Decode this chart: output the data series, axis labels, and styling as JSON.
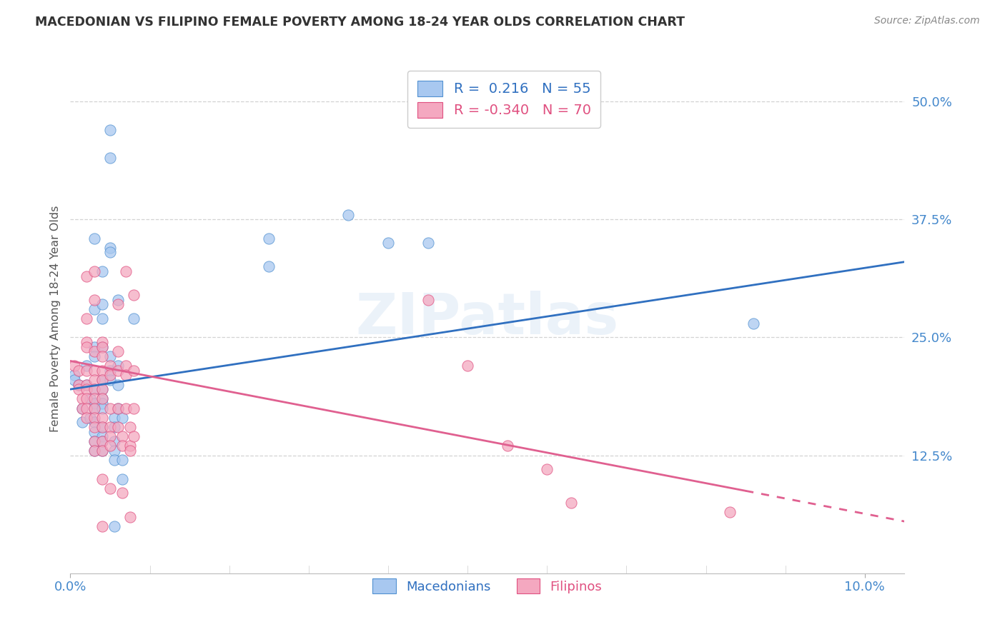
{
  "title": "MACEDONIAN VS FILIPINO FEMALE POVERTY AMONG 18-24 YEAR OLDS CORRELATION CHART",
  "source": "Source: ZipAtlas.com",
  "ylabel": "Female Poverty Among 18-24 Year Olds",
  "yticks_labels": [
    "50.0%",
    "37.5%",
    "25.0%",
    "12.5%"
  ],
  "ytick_vals": [
    50.0,
    37.5,
    25.0,
    12.5
  ],
  "xticks_labels": [
    "0.0%",
    "10.0%"
  ],
  "xtick_vals": [
    0.0,
    10.0
  ],
  "xlim": [
    0.0,
    10.5
  ],
  "ylim": [
    0.0,
    54.0
  ],
  "macedonian_color": "#A8C8F0",
  "filipino_color": "#F4A8C0",
  "macedonian_edge_color": "#5090D0",
  "filipino_edge_color": "#E05080",
  "macedonian_line_color": "#3070C0",
  "filipino_line_color": "#E06090",
  "background_color": "#FFFFFF",
  "grid_color": "#C8C8C8",
  "watermark": "ZIPatlas",
  "legend_mac_R": "0.216",
  "legend_mac_N": "55",
  "legend_fil_R": "-0.340",
  "legend_fil_N": "70",
  "label_mac": "Macedonians",
  "label_fil": "Filipinos",
  "mac_line": {
    "x0": 0.0,
    "y0": 19.5,
    "x1": 10.5,
    "y1": 33.0
  },
  "fil_line": {
    "x0": 0.0,
    "y0": 22.5,
    "x1": 10.5,
    "y1": 5.5
  },
  "macedonian_points": [
    [
      0.05,
      21.0
    ],
    [
      0.05,
      20.5
    ],
    [
      0.1,
      20.0
    ],
    [
      0.15,
      17.5
    ],
    [
      0.15,
      16.0
    ],
    [
      0.2,
      22.0
    ],
    [
      0.2,
      20.0
    ],
    [
      0.25,
      18.5
    ],
    [
      0.25,
      16.5
    ],
    [
      0.3,
      35.5
    ],
    [
      0.3,
      28.0
    ],
    [
      0.3,
      24.0
    ],
    [
      0.3,
      23.0
    ],
    [
      0.3,
      19.5
    ],
    [
      0.3,
      18.0
    ],
    [
      0.3,
      17.5
    ],
    [
      0.3,
      16.0
    ],
    [
      0.3,
      15.0
    ],
    [
      0.3,
      14.0
    ],
    [
      0.3,
      13.0
    ],
    [
      0.4,
      32.0
    ],
    [
      0.4,
      28.5
    ],
    [
      0.4,
      27.0
    ],
    [
      0.4,
      24.0
    ],
    [
      0.4,
      20.5
    ],
    [
      0.4,
      19.5
    ],
    [
      0.4,
      18.5
    ],
    [
      0.4,
      18.0
    ],
    [
      0.4,
      17.5
    ],
    [
      0.4,
      15.5
    ],
    [
      0.4,
      14.5
    ],
    [
      0.4,
      14.0
    ],
    [
      0.4,
      13.0
    ],
    [
      0.5,
      47.0
    ],
    [
      0.5,
      44.0
    ],
    [
      0.5,
      34.5
    ],
    [
      0.5,
      34.0
    ],
    [
      0.5,
      23.0
    ],
    [
      0.5,
      21.5
    ],
    [
      0.5,
      20.5
    ],
    [
      0.55,
      16.5
    ],
    [
      0.55,
      15.5
    ],
    [
      0.55,
      14.0
    ],
    [
      0.55,
      13.0
    ],
    [
      0.55,
      12.0
    ],
    [
      0.55,
      5.0
    ],
    [
      0.6,
      29.0
    ],
    [
      0.6,
      22.0
    ],
    [
      0.6,
      20.0
    ],
    [
      0.6,
      17.5
    ],
    [
      0.65,
      16.5
    ],
    [
      0.65,
      12.0
    ],
    [
      0.65,
      10.0
    ],
    [
      0.8,
      27.0
    ],
    [
      2.5,
      35.5
    ],
    [
      2.5,
      32.5
    ],
    [
      3.5,
      38.0
    ],
    [
      4.0,
      35.0
    ],
    [
      4.5,
      35.0
    ],
    [
      8.6,
      26.5
    ]
  ],
  "filipino_points": [
    [
      0.05,
      22.0
    ],
    [
      0.1,
      21.5
    ],
    [
      0.1,
      20.0
    ],
    [
      0.1,
      19.5
    ],
    [
      0.15,
      18.5
    ],
    [
      0.15,
      17.5
    ],
    [
      0.2,
      31.5
    ],
    [
      0.2,
      27.0
    ],
    [
      0.2,
      24.5
    ],
    [
      0.2,
      24.0
    ],
    [
      0.2,
      21.5
    ],
    [
      0.2,
      20.0
    ],
    [
      0.2,
      19.5
    ],
    [
      0.2,
      18.5
    ],
    [
      0.2,
      17.5
    ],
    [
      0.2,
      16.5
    ],
    [
      0.3,
      32.0
    ],
    [
      0.3,
      29.0
    ],
    [
      0.3,
      23.5
    ],
    [
      0.3,
      21.5
    ],
    [
      0.3,
      20.5
    ],
    [
      0.3,
      19.5
    ],
    [
      0.3,
      18.5
    ],
    [
      0.3,
      17.5
    ],
    [
      0.3,
      16.5
    ],
    [
      0.3,
      15.5
    ],
    [
      0.3,
      14.0
    ],
    [
      0.3,
      13.0
    ],
    [
      0.4,
      24.5
    ],
    [
      0.4,
      24.0
    ],
    [
      0.4,
      23.0
    ],
    [
      0.4,
      21.5
    ],
    [
      0.4,
      20.5
    ],
    [
      0.4,
      19.5
    ],
    [
      0.4,
      18.5
    ],
    [
      0.4,
      16.5
    ],
    [
      0.4,
      15.5
    ],
    [
      0.4,
      14.0
    ],
    [
      0.4,
      13.0
    ],
    [
      0.4,
      10.0
    ],
    [
      0.4,
      5.0
    ],
    [
      0.5,
      22.0
    ],
    [
      0.5,
      21.0
    ],
    [
      0.5,
      17.5
    ],
    [
      0.5,
      15.5
    ],
    [
      0.5,
      14.5
    ],
    [
      0.5,
      13.5
    ],
    [
      0.5,
      9.0
    ],
    [
      0.6,
      28.5
    ],
    [
      0.6,
      23.5
    ],
    [
      0.6,
      21.5
    ],
    [
      0.6,
      17.5
    ],
    [
      0.6,
      15.5
    ],
    [
      0.65,
      14.5
    ],
    [
      0.65,
      13.5
    ],
    [
      0.65,
      8.5
    ],
    [
      0.7,
      32.0
    ],
    [
      0.7,
      22.0
    ],
    [
      0.7,
      21.0
    ],
    [
      0.7,
      17.5
    ],
    [
      0.75,
      15.5
    ],
    [
      0.75,
      13.5
    ],
    [
      0.75,
      13.0
    ],
    [
      0.75,
      6.0
    ],
    [
      0.8,
      29.5
    ],
    [
      0.8,
      21.5
    ],
    [
      0.8,
      17.5
    ],
    [
      0.8,
      14.5
    ],
    [
      4.5,
      29.0
    ],
    [
      5.0,
      22.0
    ],
    [
      5.5,
      13.5
    ],
    [
      6.0,
      11.0
    ],
    [
      6.3,
      7.5
    ],
    [
      8.3,
      6.5
    ]
  ]
}
